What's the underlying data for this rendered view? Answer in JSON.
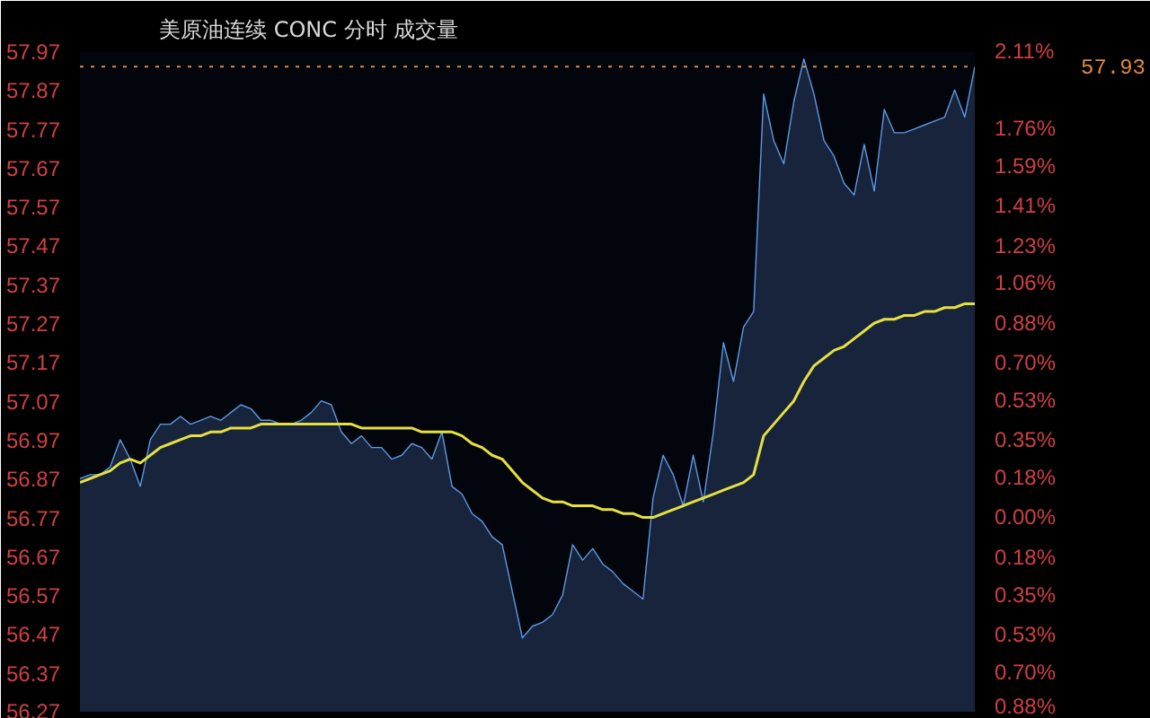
{
  "chart_data": {
    "type": "area",
    "title": "美原油连续 CONC 分时 成交量",
    "categories": [
      null,
      null,
      null,
      null,
      null,
      null,
      null,
      null,
      null,
      null,
      null,
      null,
      null,
      null,
      null,
      null,
      null,
      null,
      null,
      null,
      null,
      null,
      null,
      null,
      null,
      null,
      null,
      null,
      null,
      null,
      null,
      null,
      null,
      null,
      null,
      null,
      null,
      null,
      null,
      null,
      null,
      null,
      null,
      null,
      null,
      null,
      null,
      null,
      null,
      null,
      null,
      null,
      null,
      null,
      null,
      null,
      null,
      null,
      null,
      null,
      null,
      null,
      null,
      null,
      null,
      null,
      null,
      null,
      null,
      null,
      null,
      null,
      null,
      null,
      null,
      null,
      null,
      null,
      null,
      null,
      null,
      null,
      null,
      null,
      null,
      null,
      null,
      null,
      null,
      null
    ],
    "series": [
      {
        "color": "#5b9be6",
        "values": [
          56.87,
          56.88,
          56.88,
          56.9,
          56.97,
          56.92,
          56.85,
          56.97,
          57.01,
          57.01,
          57.03,
          57.01,
          57.02,
          57.03,
          57.02,
          57.04,
          57.06,
          57.05,
          57.02,
          57.02,
          57.01,
          57.01,
          57.02,
          57.04,
          57.07,
          57.06,
          56.99,
          56.96,
          56.98,
          56.95,
          56.95,
          56.92,
          56.93,
          56.96,
          56.95,
          56.92,
          56.99,
          56.85,
          56.83,
          56.78,
          56.76,
          56.72,
          56.7,
          56.58,
          56.46,
          56.49,
          56.5,
          56.52,
          56.57,
          56.7,
          56.66,
          56.69,
          56.65,
          56.63,
          56.6,
          56.58,
          56.56,
          56.82,
          56.93,
          56.88,
          56.8,
          56.93,
          56.81,
          56.99,
          57.22,
          57.12,
          57.26,
          57.3,
          57.86,
          57.74,
          57.68,
          57.84,
          57.95,
          57.86,
          57.74,
          57.7,
          57.63,
          57.6,
          57.73,
          57.61,
          57.82,
          57.76,
          57.76,
          57.77,
          57.78,
          57.79,
          57.8,
          57.87,
          57.8,
          57.93
        ]
      },
      {
        "type": "line",
        "color": "#e6e040",
        "values": [
          56.86,
          56.87,
          56.88,
          56.89,
          56.91,
          56.92,
          56.91,
          56.93,
          56.95,
          56.96,
          56.97,
          56.98,
          56.98,
          56.99,
          56.99,
          57.0,
          57.0,
          57.0,
          57.01,
          57.01,
          57.01,
          57.01,
          57.01,
          57.01,
          57.01,
          57.01,
          57.01,
          57.01,
          57.0,
          57.0,
          57.0,
          57.0,
          57.0,
          57.0,
          56.99,
          56.99,
          56.99,
          56.99,
          56.98,
          56.96,
          56.95,
          56.93,
          56.92,
          56.89,
          56.86,
          56.84,
          56.82,
          56.81,
          56.81,
          56.8,
          56.8,
          56.8,
          56.79,
          56.79,
          56.78,
          56.78,
          56.77,
          56.77,
          56.78,
          56.79,
          56.8,
          56.81,
          56.82,
          56.83,
          56.84,
          56.85,
          56.86,
          56.88,
          56.98,
          57.01,
          57.04,
          57.07,
          57.12,
          57.16,
          57.18,
          57.2,
          57.21,
          57.23,
          57.25,
          57.27,
          57.28,
          57.28,
          57.29,
          57.29,
          57.3,
          57.3,
          57.31,
          57.31,
          57.32,
          57.32
        ]
      }
    ],
    "ylim": [
      56.27,
      57.97
    ],
    "yticks": [
      56.27,
      56.37,
      56.47,
      56.57,
      56.67,
      56.77,
      56.87,
      56.97,
      57.07,
      57.17,
      57.27,
      57.37,
      57.47,
      57.57,
      57.67,
      57.77,
      57.87,
      57.97
    ],
    "y2lim": [
      -0.88,
      2.11
    ],
    "y2ticks": [
      {
        "value": -0.88,
        "label": "0.88%"
      },
      {
        "value": -0.7,
        "label": "0.70%"
      },
      {
        "value": -0.53,
        "label": "0.53%"
      },
      {
        "value": -0.35,
        "label": "0.35%"
      },
      {
        "value": -0.18,
        "label": "0.18%"
      },
      {
        "value": 0,
        "label": "0.00%"
      },
      {
        "value": 0.18,
        "label": "0.18%"
      },
      {
        "value": 0.35,
        "label": "0.35%"
      },
      {
        "value": 0.53,
        "label": "0.53%"
      },
      {
        "value": 0.7,
        "label": "0.70%"
      },
      {
        "value": 0.88,
        "label": "0.88%"
      },
      {
        "value": 1.06,
        "label": "1.06%"
      },
      {
        "value": 1.23,
        "label": "1.23%"
      },
      {
        "value": 1.41,
        "label": "1.41%"
      },
      {
        "value": 1.59,
        "label": "1.59%"
      },
      {
        "value": 1.76,
        "label": "1.76%"
      },
      {
        "value": 2.11,
        "label": "2.11%"
      }
    ],
    "ref_lines": [
      {
        "axis": "y",
        "value": 57.93,
        "label": "57.93",
        "color": "#e08a3c",
        "line_style": "dotted"
      }
    ]
  }
}
